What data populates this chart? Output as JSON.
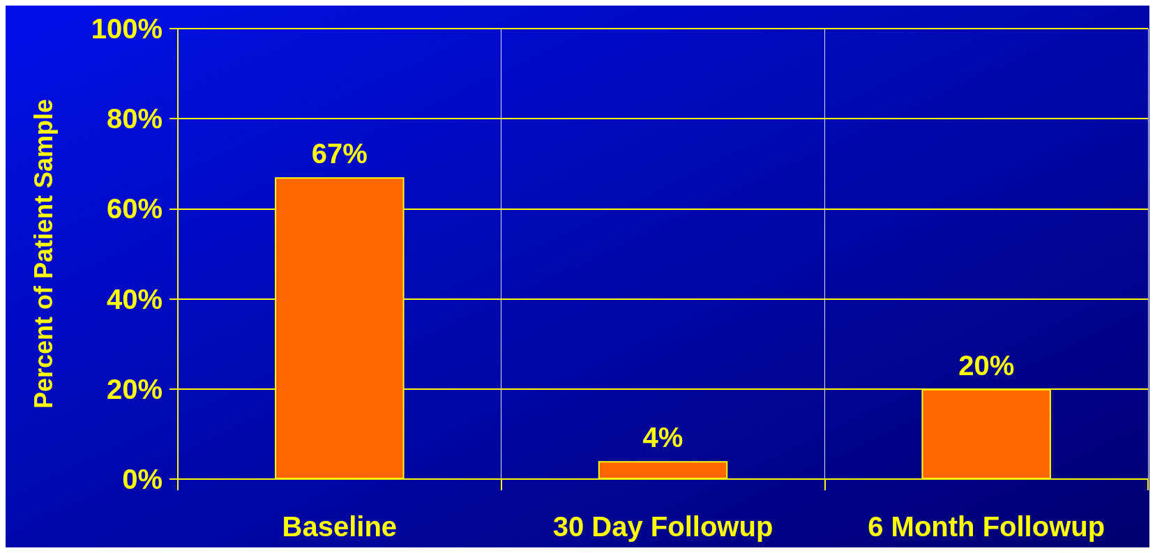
{
  "chart_data": {
    "type": "bar",
    "ylabel": "Percent of Patient Sample",
    "categories": [
      "Baseline",
      "30 Day Followup",
      "6 Month Followup"
    ],
    "values": [
      67,
      4,
      20
    ],
    "value_labels": [
      "67%",
      "4%",
      "20%"
    ],
    "color": "#ff6600",
    "ylim": [
      0,
      100
    ],
    "yticks": [
      {
        "value": 0,
        "label": "0%"
      },
      {
        "value": 20,
        "label": "20%"
      },
      {
        "value": 40,
        "label": "40%"
      },
      {
        "value": 60,
        "label": "60%"
      },
      {
        "value": 80,
        "label": "80%"
      },
      {
        "value": 100,
        "label": "100%"
      }
    ],
    "grid": true
  }
}
